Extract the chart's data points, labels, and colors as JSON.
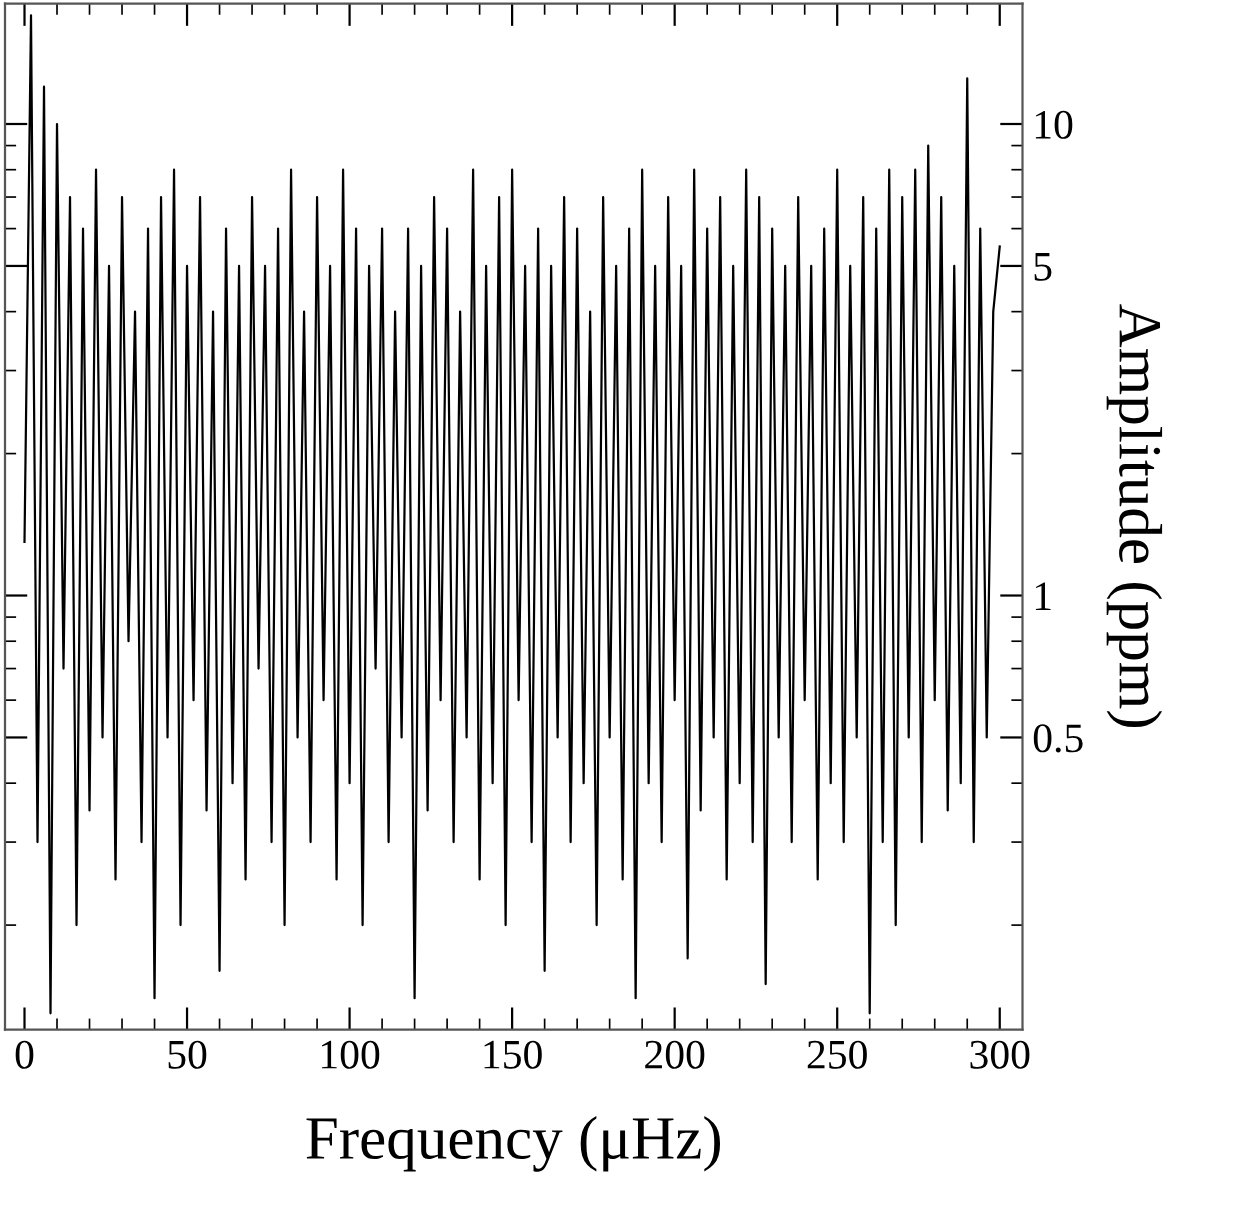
{
  "chart_data": {
    "type": "line",
    "xlabel": "Frequency (μHz)",
    "ylabel": "Amplitude (ppm)",
    "x": [
      0,
      2,
      4,
      6,
      8,
      10,
      12,
      14,
      16,
      18,
      20,
      22,
      24,
      26,
      28,
      30,
      32,
      34,
      36,
      38,
      40,
      42,
      44,
      46,
      48,
      50,
      52,
      54,
      56,
      58,
      60,
      62,
      64,
      66,
      68,
      70,
      72,
      74,
      76,
      78,
      80,
      82,
      84,
      86,
      88,
      90,
      92,
      94,
      96,
      98,
      100,
      102,
      104,
      106,
      108,
      110,
      112,
      114,
      116,
      118,
      120,
      122,
      124,
      126,
      128,
      130,
      132,
      134,
      136,
      138,
      140,
      142,
      144,
      146,
      148,
      150,
      152,
      154,
      156,
      158,
      160,
      162,
      164,
      166,
      168,
      170,
      172,
      174,
      176,
      178,
      180,
      182,
      184,
      186,
      188,
      190,
      192,
      194,
      196,
      198,
      200,
      202,
      204,
      206,
      208,
      210,
      212,
      214,
      216,
      218,
      220,
      222,
      224,
      226,
      228,
      230,
      232,
      234,
      236,
      238,
      240,
      242,
      244,
      246,
      248,
      250,
      252,
      254,
      256,
      258,
      260,
      262,
      264,
      266,
      268,
      270,
      272,
      274,
      276,
      278,
      280,
      282,
      284,
      286,
      288,
      290,
      292,
      294,
      296,
      298,
      300
    ],
    "series": [
      {
        "color": "#000000",
        "values": [
          1.3,
          17,
          0.3,
          12,
          0.13,
          10,
          0.7,
          7,
          0.2,
          6,
          0.35,
          8,
          0.5,
          5,
          0.25,
          7,
          0.8,
          4,
          0.3,
          6,
          0.14,
          7,
          0.5,
          8,
          0.2,
          5,
          0.6,
          7,
          0.35,
          4,
          0.16,
          6,
          0.4,
          5,
          0.25,
          7,
          0.7,
          5,
          0.3,
          6,
          0.2,
          8,
          0.5,
          4,
          0.3,
          7,
          0.6,
          5,
          0.25,
          8,
          0.4,
          6,
          0.2,
          5,
          0.7,
          6,
          0.3,
          4,
          0.5,
          6,
          0.14,
          5,
          0.35,
          7,
          0.6,
          6,
          0.3,
          4,
          0.5,
          8,
          0.25,
          5,
          0.4,
          7,
          0.2,
          8,
          0.6,
          5,
          0.3,
          6,
          0.16,
          5,
          0.5,
          7,
          0.3,
          6,
          0.4,
          4,
          0.2,
          7,
          0.5,
          5,
          0.25,
          6,
          0.14,
          8,
          0.4,
          5,
          0.3,
          7,
          0.6,
          5,
          0.17,
          8,
          0.35,
          6,
          0.5,
          7,
          0.25,
          5,
          0.4,
          8,
          0.3,
          7,
          0.15,
          6,
          0.5,
          5,
          0.3,
          7,
          0.6,
          5,
          0.25,
          6,
          0.4,
          8,
          0.3,
          5,
          0.5,
          7,
          0.13,
          6,
          0.3,
          8,
          0.2,
          7,
          0.5,
          8,
          0.3,
          9,
          0.6,
          7,
          0.35,
          5,
          0.4,
          12.5,
          0.3,
          6,
          0.5,
          4,
          5.5
        ]
      }
    ],
    "log": "y",
    "xlim": [
      -6,
      307
    ],
    "ylim": [
      0.12,
      18
    ],
    "xticks": [
      0,
      50,
      100,
      150,
      200,
      250,
      300
    ],
    "yticks": [
      0.5,
      1,
      5,
      10
    ],
    "line_style": "solid",
    "grid": false,
    "legend": false
  }
}
